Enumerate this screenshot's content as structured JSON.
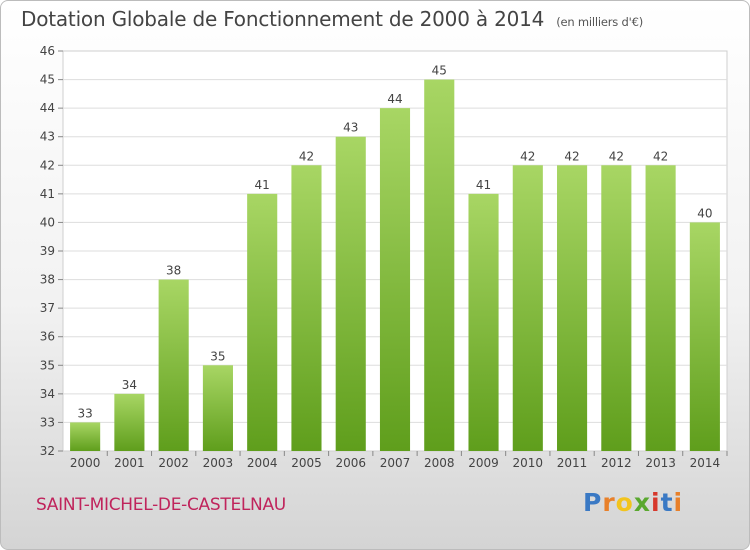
{
  "header": {
    "title": "Dotation Globale de Fonctionnement de 2000 à 2014",
    "subtitle": "(en milliers d'€)"
  },
  "footer": {
    "city": "SAINT-MICHEL-DE-CASTELNAU",
    "logo_text": "Proxiti"
  },
  "colors": {
    "bar_top": "#a8d664",
    "bar_bottom": "#5f9e1c",
    "grid": "#dddddd",
    "city": "#c0245c"
  },
  "chart_data": {
    "type": "bar",
    "title": "Dotation Globale de Fonctionnement de 2000 à 2014",
    "subtitle": "(en milliers d'€)",
    "categories": [
      "2000",
      "2001",
      "2002",
      "2003",
      "2004",
      "2005",
      "2006",
      "2007",
      "2008",
      "2009",
      "2010",
      "2011",
      "2012",
      "2013",
      "2014"
    ],
    "values": [
      33,
      34,
      38,
      35,
      41,
      42,
      43,
      44,
      45,
      41,
      42,
      42,
      42,
      42,
      40
    ],
    "ylim": [
      32,
      46
    ],
    "yticks": [
      32,
      33,
      34,
      35,
      36,
      37,
      38,
      39,
      40,
      41,
      42,
      43,
      44,
      45,
      46
    ],
    "grid": true,
    "data_labels": true,
    "legend": "none"
  }
}
